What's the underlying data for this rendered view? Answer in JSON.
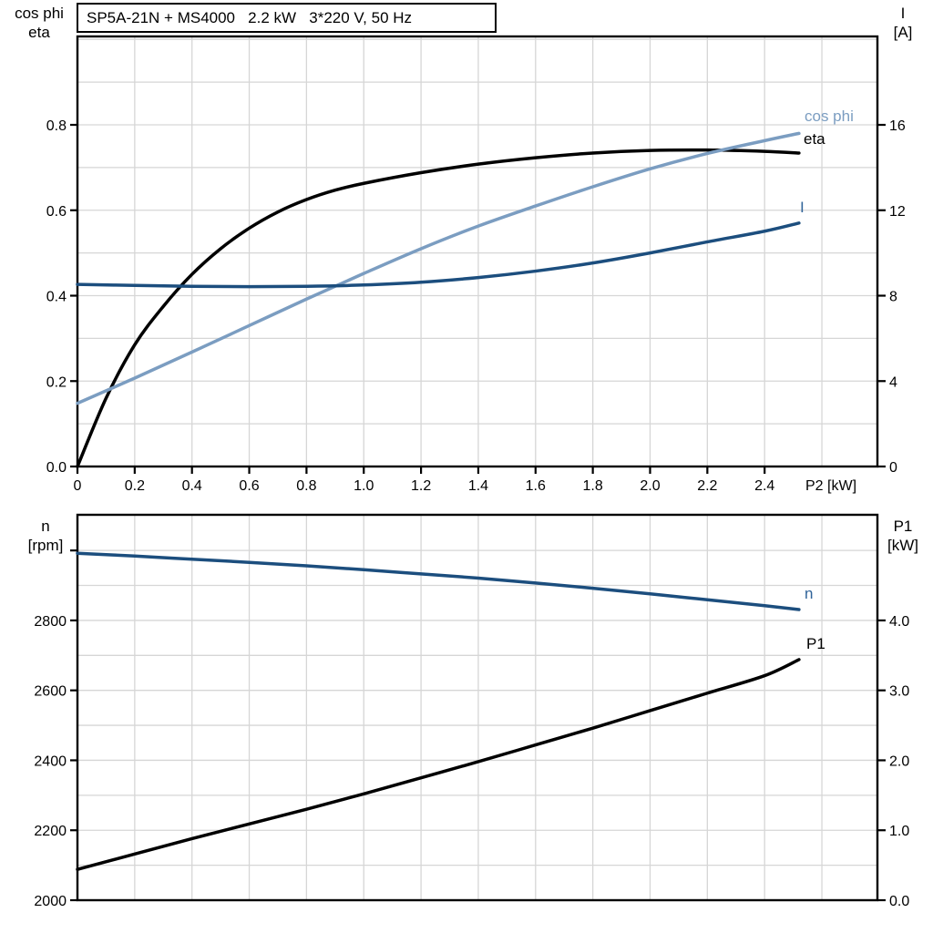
{
  "colors": {
    "black": "#000000",
    "dark_blue": "#1c4e7e",
    "light_blue": "#7b9dc1",
    "label_blue": "#2f6399",
    "grid": "#d6d6d6",
    "background": "#ffffff"
  },
  "chart_data": [
    {
      "type": "line",
      "title": "SP5A-21N + MS4000   2.2 kW   3*220 V, 50 Hz",
      "x_axis": {
        "label": "P2 [kW]",
        "min": 0,
        "max": 2.794,
        "tick_values": [
          0,
          0.2,
          0.4,
          0.6,
          0.8,
          1.0,
          1.2,
          1.4,
          1.6,
          1.8,
          2.0,
          2.2,
          2.4
        ],
        "tick_labels": [
          "0",
          "0.2",
          "0.4",
          "0.6",
          "0.8",
          "1.0",
          "1.2",
          "1.4",
          "1.6",
          "1.8",
          "2.0",
          "2.2",
          "2.4"
        ],
        "grid_values": [
          0.2,
          0.4,
          0.6,
          0.8,
          1.0,
          1.2,
          1.4,
          1.6,
          1.8,
          2.0,
          2.2,
          2.4,
          2.6
        ]
      },
      "y_left": {
        "label_lines": [
          "cos phi",
          "eta"
        ],
        "min": 0,
        "max": 1.007,
        "tick_values": [
          0,
          0.2,
          0.4,
          0.6,
          0.8
        ],
        "tick_labels": [
          "0.0",
          "0.2",
          "0.4",
          "0.6",
          "0.8"
        ],
        "grid_values": [
          0.1,
          0.2,
          0.3,
          0.4,
          0.5,
          0.6,
          0.7,
          0.8,
          0.9,
          1.0
        ]
      },
      "y_right": {
        "label_lines": [
          "I",
          "[A]"
        ],
        "min": 0,
        "max": 20.14,
        "tick_values": [
          0,
          4,
          8,
          12,
          16
        ],
        "tick_labels": [
          "0",
          "4",
          "8",
          "12",
          "16"
        ]
      },
      "grid": true,
      "legend_position": "inline-right",
      "series": [
        {
          "name": "eta",
          "label": "eta",
          "axis": "left",
          "color": "#000000",
          "label_color": "#000000",
          "points": [
            [
              0,
              0
            ],
            [
              0.1,
              0.16
            ],
            [
              0.2,
              0.285
            ],
            [
              0.3,
              0.375
            ],
            [
              0.4,
              0.45
            ],
            [
              0.5,
              0.51
            ],
            [
              0.6,
              0.558
            ],
            [
              0.7,
              0.596
            ],
            [
              0.8,
              0.625
            ],
            [
              0.9,
              0.647
            ],
            [
              1.0,
              0.663
            ],
            [
              1.2,
              0.688
            ],
            [
              1.4,
              0.708
            ],
            [
              1.6,
              0.723
            ],
            [
              1.8,
              0.734
            ],
            [
              2.0,
              0.74
            ],
            [
              2.2,
              0.741
            ],
            [
              2.4,
              0.738
            ],
            [
              2.52,
              0.734
            ]
          ]
        },
        {
          "name": "cos_phi",
          "label": "cos phi",
          "axis": "left",
          "color": "#7b9dc1",
          "label_color": "#7b9dc1",
          "points": [
            [
              0,
              0.148
            ],
            [
              0.2,
              0.207
            ],
            [
              0.4,
              0.268
            ],
            [
              0.6,
              0.33
            ],
            [
              0.8,
              0.392
            ],
            [
              1.0,
              0.452
            ],
            [
              1.2,
              0.51
            ],
            [
              1.4,
              0.563
            ],
            [
              1.6,
              0.61
            ],
            [
              1.8,
              0.655
            ],
            [
              2.0,
              0.697
            ],
            [
              2.2,
              0.733
            ],
            [
              2.4,
              0.763
            ],
            [
              2.52,
              0.78
            ]
          ]
        },
        {
          "name": "I",
          "label": "I",
          "axis": "right",
          "color": "#1c4e7e",
          "label_color": "#2f6399",
          "points": [
            [
              0,
              8.53
            ],
            [
              0.2,
              8.48
            ],
            [
              0.4,
              8.44
            ],
            [
              0.6,
              8.42
            ],
            [
              0.8,
              8.44
            ],
            [
              1.0,
              8.5
            ],
            [
              1.2,
              8.63
            ],
            [
              1.4,
              8.85
            ],
            [
              1.6,
              9.15
            ],
            [
              1.8,
              9.53
            ],
            [
              2.0,
              10.0
            ],
            [
              2.2,
              10.52
            ],
            [
              2.4,
              11.02
            ],
            [
              2.52,
              11.4
            ]
          ]
        }
      ]
    },
    {
      "type": "line",
      "title": "",
      "x_axis": {
        "label": "",
        "min": 0,
        "max": 2.794,
        "tick_values": [],
        "tick_labels": [],
        "grid_values": [
          0.2,
          0.4,
          0.6,
          0.8,
          1.0,
          1.2,
          1.4,
          1.6,
          1.8,
          2.0,
          2.2,
          2.4,
          2.6
        ]
      },
      "y_left": {
        "label_lines": [
          "n",
          "[rpm]"
        ],
        "min": 2000,
        "max": 3102,
        "tick_values": [
          2000,
          2200,
          2400,
          2600,
          2800,
          3000
        ],
        "tick_labels": [
          "2000",
          "2200",
          "2400",
          "2600",
          "2800",
          ""
        ],
        "grid_values": [
          2100,
          2200,
          2300,
          2400,
          2500,
          2600,
          2700,
          2800,
          2900,
          3000
        ]
      },
      "y_right": {
        "label_lines": [
          "P1",
          "[kW]"
        ],
        "min": 0,
        "max": 5.51,
        "tick_values": [
          0,
          1,
          2,
          3,
          4
        ],
        "tick_labels": [
          "0.0",
          "1.0",
          "2.0",
          "3.0",
          "4.0"
        ]
      },
      "grid": true,
      "legend_position": "inline-right",
      "series": [
        {
          "name": "n",
          "label": "n",
          "axis": "left",
          "color": "#1c4e7e",
          "label_color": "#2f6399",
          "points": [
            [
              0,
              2992
            ],
            [
              0.2,
              2984
            ],
            [
              0.4,
              2975
            ],
            [
              0.6,
              2966
            ],
            [
              0.8,
              2956
            ],
            [
              1.0,
              2945
            ],
            [
              1.2,
              2933
            ],
            [
              1.4,
              2921
            ],
            [
              1.6,
              2907
            ],
            [
              1.8,
              2892
            ],
            [
              2.0,
              2876
            ],
            [
              2.2,
              2859
            ],
            [
              2.4,
              2842
            ],
            [
              2.52,
              2831
            ]
          ]
        },
        {
          "name": "P1",
          "label": "P1",
          "axis": "right",
          "color": "#000000",
          "label_color": "#000000",
          "points": [
            [
              0,
              0.44
            ],
            [
              0.2,
              0.66
            ],
            [
              0.4,
              0.88
            ],
            [
              0.6,
              1.09
            ],
            [
              0.8,
              1.3
            ],
            [
              1.0,
              1.52
            ],
            [
              1.2,
              1.75
            ],
            [
              1.4,
              1.98
            ],
            [
              1.6,
              2.22
            ],
            [
              1.8,
              2.46
            ],
            [
              2.0,
              2.71
            ],
            [
              2.2,
              2.96
            ],
            [
              2.4,
              3.21
            ],
            [
              2.52,
              3.44
            ]
          ]
        }
      ]
    }
  ]
}
